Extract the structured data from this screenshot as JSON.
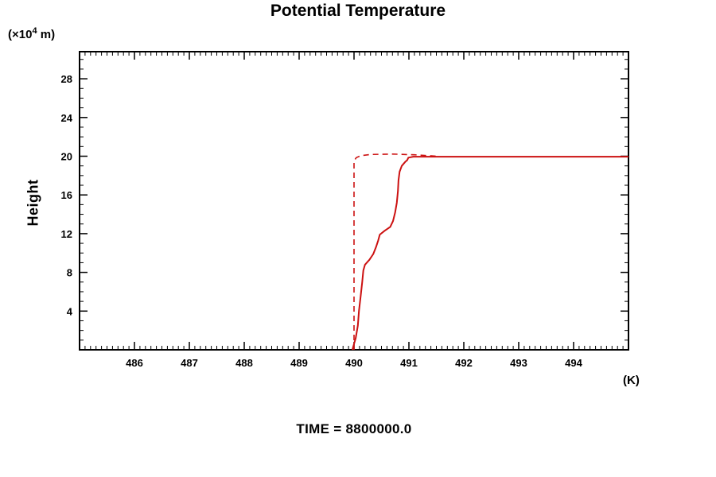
{
  "title": "Potential Temperature",
  "y_unit": {
    "prefix": "(×10",
    "sup": "4",
    "suffix": "  m)"
  },
  "y_axis_title": "Height",
  "x_unit_label": "(K)",
  "time_caption": "TIME = 8800000.0",
  "chart_data": {
    "type": "line",
    "title": "Potential Temperature",
    "xlabel": "(K)",
    "ylabel": "Height (x10^4 m)",
    "xlim": [
      485,
      495
    ],
    "ylim": [
      0,
      30.8
    ],
    "x_ticks": [
      486,
      487,
      488,
      489,
      490,
      491,
      492,
      493,
      494
    ],
    "y_ticks": [
      4,
      8,
      12,
      16,
      20,
      24,
      28
    ],
    "x_minor_step": 0.1,
    "y_minor_step": 1,
    "grid": false,
    "legend": null,
    "axis_color": "#000000",
    "series": [
      {
        "name": "potential-temperature-profile",
        "style": "solid",
        "color": "#cc1111",
        "width": 2,
        "points": [
          [
            489.97,
            0
          ],
          [
            490.03,
            1.2
          ],
          [
            490.07,
            2.5
          ],
          [
            490.09,
            4.0
          ],
          [
            490.12,
            5.5
          ],
          [
            490.15,
            7.0
          ],
          [
            490.17,
            8.2
          ],
          [
            490.2,
            8.8
          ],
          [
            490.28,
            9.3
          ],
          [
            490.35,
            9.9
          ],
          [
            490.4,
            10.6
          ],
          [
            490.44,
            11.3
          ],
          [
            490.47,
            11.9
          ],
          [
            490.56,
            12.3
          ],
          [
            490.66,
            12.7
          ],
          [
            490.71,
            13.3
          ],
          [
            490.75,
            14.2
          ],
          [
            490.78,
            15.2
          ],
          [
            490.8,
            16.4
          ],
          [
            490.81,
            17.5
          ],
          [
            490.83,
            18.4
          ],
          [
            490.87,
            19.0
          ],
          [
            490.93,
            19.4
          ],
          [
            490.97,
            19.6
          ],
          [
            490.99,
            19.85
          ],
          [
            491.08,
            19.95
          ],
          [
            495.0,
            19.95
          ]
        ]
      },
      {
        "name": "initial-profile-dashed",
        "style": "dashed",
        "color": "#cc1111",
        "width": 1.6,
        "points": [
          [
            490.0,
            0
          ],
          [
            490.0,
            19.5
          ],
          [
            490.04,
            19.85
          ],
          [
            490.12,
            20.05
          ],
          [
            490.3,
            20.18
          ],
          [
            490.7,
            20.22
          ],
          [
            491.1,
            20.15
          ],
          [
            491.5,
            20.0
          ]
        ]
      }
    ]
  }
}
